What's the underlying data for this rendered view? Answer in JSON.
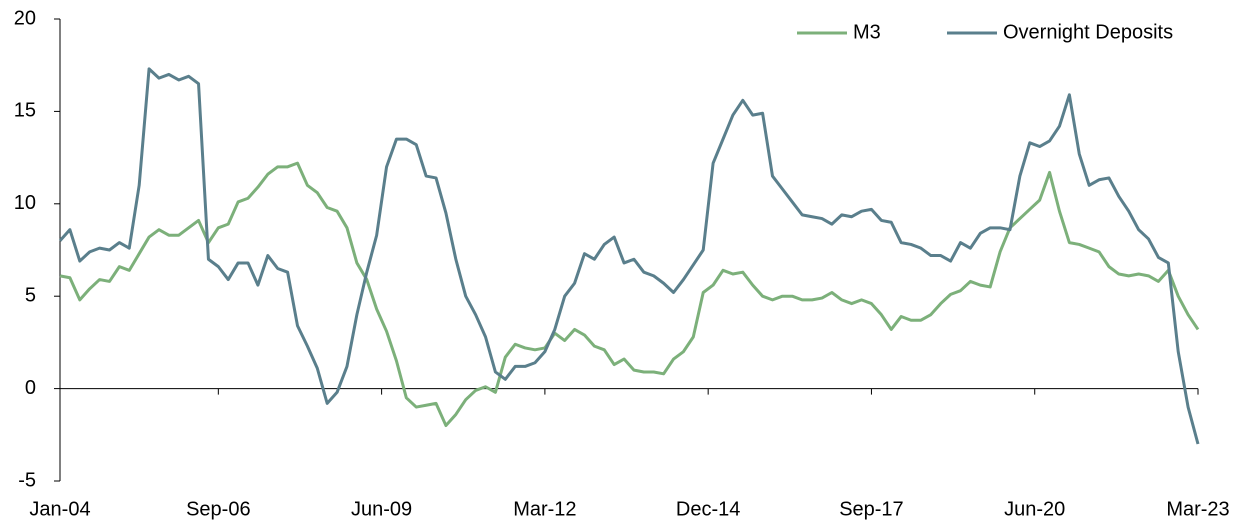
{
  "chart_data": {
    "type": "line",
    "x": [
      "Jan-04",
      "Mar-04",
      "May-04",
      "Jul-04",
      "Sep-04",
      "Nov-04",
      "Jan-05",
      "Mar-05",
      "May-05",
      "Jul-05",
      "Sep-05",
      "Nov-05",
      "Jan-06",
      "Mar-06",
      "May-06",
      "Jul-06",
      "Sep-06",
      "Nov-06",
      "Jan-07",
      "Mar-07",
      "May-07",
      "Jul-07",
      "Sep-07",
      "Nov-07",
      "Jan-08",
      "Mar-08",
      "May-08",
      "Jul-08",
      "Sep-08",
      "Nov-08",
      "Jan-09",
      "Mar-09",
      "May-09",
      "Jul-09",
      "Sep-09",
      "Nov-09",
      "Jan-10",
      "Mar-10",
      "May-10",
      "Jul-10",
      "Sep-10",
      "Nov-10",
      "Jan-11",
      "Mar-11",
      "May-11",
      "Jul-11",
      "Sep-11",
      "Nov-11",
      "Jan-12",
      "Mar-12",
      "May-12",
      "Jul-12",
      "Sep-12",
      "Nov-12",
      "Jan-13",
      "Mar-13",
      "May-13",
      "Jul-13",
      "Sep-13",
      "Nov-13",
      "Jan-14",
      "Mar-14",
      "May-14",
      "Jul-14",
      "Sep-14",
      "Nov-14",
      "Jan-15",
      "Mar-15",
      "May-15",
      "Jul-15",
      "Sep-15",
      "Nov-15",
      "Jan-16",
      "Mar-16",
      "May-16",
      "Jul-16",
      "Sep-16",
      "Nov-16",
      "Jan-17",
      "Mar-17",
      "May-17",
      "Jul-17",
      "Sep-17",
      "Nov-17",
      "Jan-18",
      "Mar-18",
      "May-18",
      "Jul-18",
      "Sep-18",
      "Nov-18",
      "Jan-19",
      "Mar-19",
      "May-19",
      "Jul-19",
      "Sep-19",
      "Nov-19",
      "Jan-20",
      "Mar-20",
      "May-20",
      "Jul-20",
      "Sep-20",
      "Nov-20",
      "Jan-21",
      "Mar-21",
      "May-21",
      "Jul-21",
      "Sep-21",
      "Nov-21",
      "Jan-22",
      "Mar-22",
      "May-22",
      "Jul-22",
      "Sep-22",
      "Nov-22",
      "Jan-23",
      "Mar-23"
    ],
    "series": [
      {
        "name": "M3",
        "color": "#7cb07a",
        "values": [
          6.1,
          6.0,
          4.8,
          5.4,
          5.9,
          5.8,
          6.6,
          6.4,
          7.3,
          8.2,
          8.6,
          8.3,
          8.3,
          8.7,
          9.1,
          7.9,
          8.7,
          8.9,
          10.1,
          10.3,
          10.9,
          11.6,
          12.0,
          12.0,
          12.2,
          11.0,
          10.6,
          9.8,
          9.6,
          8.7,
          6.8,
          5.9,
          4.3,
          3.1,
          1.5,
          -0.5,
          -1.0,
          -0.9,
          -0.8,
          -2.0,
          -1.4,
          -0.6,
          -0.1,
          0.1,
          -0.2,
          1.7,
          2.4,
          2.2,
          2.1,
          2.2,
          3.0,
          2.6,
          3.2,
          2.9,
          2.3,
          2.1,
          1.3,
          1.6,
          1.0,
          0.9,
          0.9,
          0.8,
          1.6,
          2.0,
          2.8,
          5.2,
          5.6,
          6.4,
          6.2,
          6.3,
          5.6,
          5.0,
          4.8,
          5.0,
          5.0,
          4.8,
          4.8,
          4.9,
          5.2,
          4.8,
          4.6,
          4.8,
          4.6,
          4.0,
          3.2,
          3.9,
          3.7,
          3.7,
          4.0,
          4.6,
          5.1,
          5.3,
          5.8,
          5.6,
          5.5,
          7.4,
          8.7,
          9.2,
          9.7,
          10.2,
          11.7,
          9.6,
          7.9,
          7.8,
          7.6,
          7.4,
          6.6,
          6.2,
          6.1,
          6.2,
          6.1,
          5.8,
          6.4,
          5.0,
          4.0,
          3.2
        ]
      },
      {
        "name": "Overnight Deposits",
        "color": "#5a7f8c",
        "values": [
          8.0,
          8.6,
          6.9,
          7.4,
          7.6,
          7.5,
          7.9,
          7.6,
          11.0,
          17.3,
          16.8,
          17.0,
          16.7,
          16.9,
          16.5,
          7.0,
          6.6,
          5.9,
          6.8,
          6.8,
          5.6,
          7.2,
          6.5,
          6.3,
          3.4,
          2.3,
          1.1,
          -0.8,
          -0.2,
          1.2,
          4.0,
          6.3,
          8.3,
          12.0,
          13.5,
          13.5,
          13.2,
          11.5,
          11.4,
          9.5,
          7.0,
          5.0,
          4.0,
          2.8,
          0.9,
          0.5,
          1.2,
          1.2,
          1.4,
          2.0,
          3.2,
          5.0,
          5.7,
          7.3,
          7.0,
          7.8,
          8.2,
          6.8,
          7.0,
          6.3,
          6.1,
          5.7,
          5.2,
          5.9,
          6.7,
          7.5,
          12.2,
          13.5,
          14.8,
          15.6,
          14.8,
          14.9,
          11.5,
          10.8,
          10.1,
          9.4,
          9.3,
          9.2,
          8.9,
          9.4,
          9.3,
          9.6,
          9.7,
          9.1,
          9.0,
          7.9,
          7.8,
          7.6,
          7.2,
          7.2,
          6.9,
          7.9,
          7.6,
          8.4,
          8.7,
          8.7,
          8.6,
          11.5,
          13.3,
          13.1,
          13.4,
          14.2,
          15.9,
          12.7,
          11.0,
          11.3,
          11.4,
          10.4,
          9.6,
          8.6,
          8.1,
          7.1,
          6.8,
          2.0,
          -1.0,
          -3.0
        ]
      }
    ],
    "xlim": [
      "Jan-04",
      "Mar-23"
    ],
    "xticks": [
      "Jan-04",
      "Sep-06",
      "Jun-09",
      "Mar-12",
      "Dec-14",
      "Sep-17",
      "Jun-20",
      "Mar-23"
    ],
    "ylim": [
      -5,
      20
    ],
    "yticks": [
      -5,
      0,
      5,
      10,
      15,
      20
    ],
    "legend": "top-right"
  }
}
